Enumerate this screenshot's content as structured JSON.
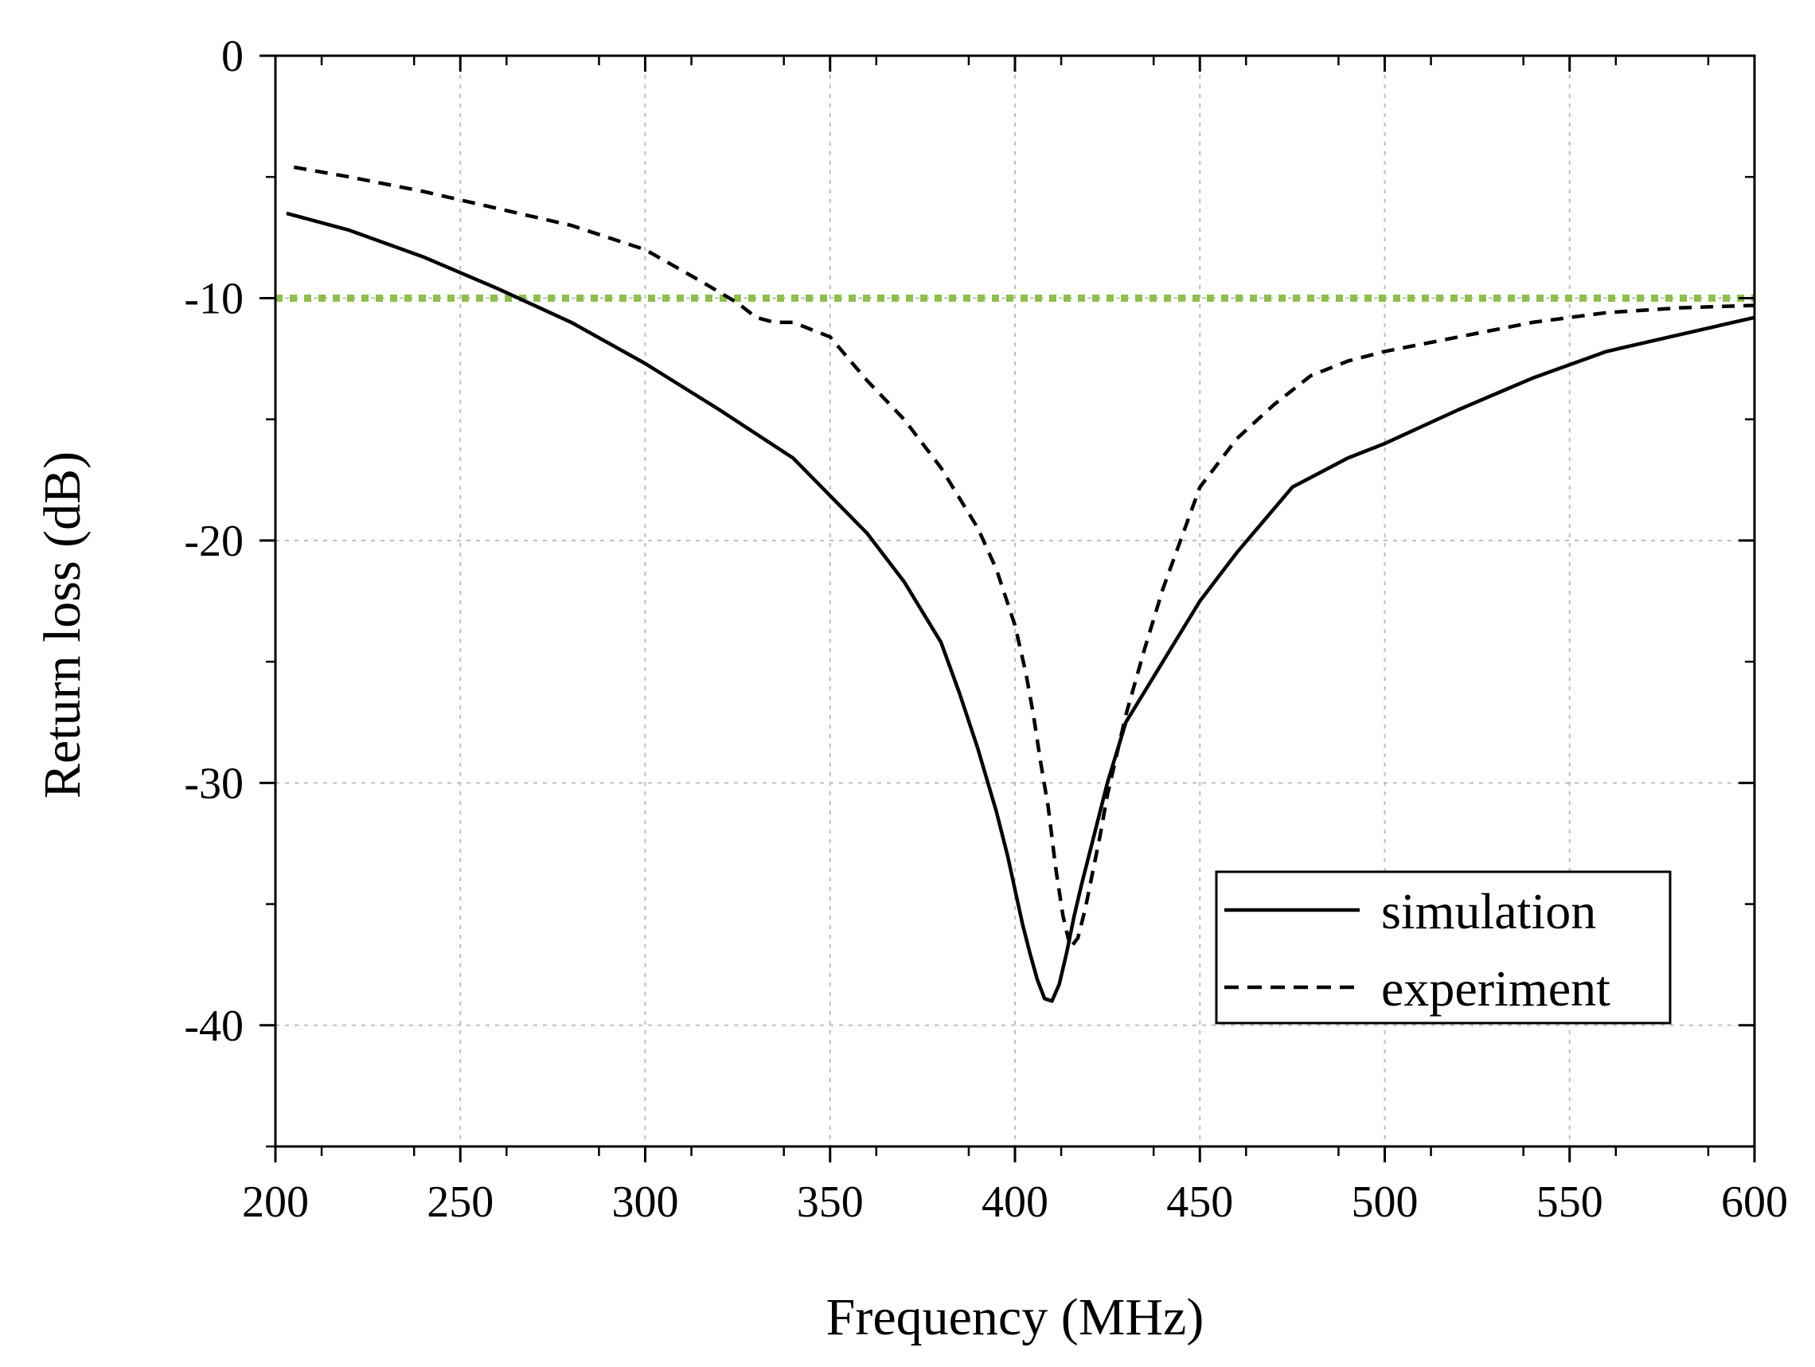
{
  "chart_data": {
    "type": "line",
    "title": "",
    "xlabel": "Frequency (MHz)",
    "ylabel": "Return loss (dB)",
    "xlim": [
      200,
      600
    ],
    "ylim": [
      -45,
      0
    ],
    "x_ticks": [
      200,
      250,
      300,
      350,
      400,
      450,
      500,
      550,
      600
    ],
    "x_tick_labels": [
      "200",
      "250",
      "300",
      "350",
      "400",
      "450",
      "500",
      "550",
      "600"
    ],
    "y_ticks": [
      0,
      -10,
      -20,
      -30,
      -40
    ],
    "y_tick_labels": [
      "0",
      "-10",
      "-20",
      "-30",
      "-40"
    ],
    "grid": true,
    "legend_position": "bottom-right",
    "reference_line": {
      "y": -10,
      "color": "#8cc04a",
      "style": "dotted"
    },
    "series": [
      {
        "name": "simulation",
        "style": "solid",
        "color": "#000000",
        "x": [
          203,
          220,
          240,
          260,
          280,
          300,
          320,
          340,
          360,
          370,
          380,
          385,
          390,
          395,
          398,
          400,
          402,
          404,
          406,
          408,
          410,
          412,
          414,
          416,
          418,
          420,
          425,
          430,
          440,
          450,
          460,
          475,
          490,
          500,
          520,
          540,
          560,
          580,
          600
        ],
        "y": [
          -6.5,
          -7.2,
          -8.3,
          -9.6,
          -11.0,
          -12.7,
          -14.6,
          -16.6,
          -19.7,
          -21.7,
          -24.2,
          -26.3,
          -28.6,
          -31.2,
          -33.0,
          -34.4,
          -35.8,
          -37.0,
          -38.1,
          -38.9,
          -39.0,
          -38.3,
          -37.0,
          -35.5,
          -34.2,
          -33.0,
          -30.0,
          -27.5,
          -25.0,
          -22.5,
          -20.5,
          -17.8,
          -16.6,
          -16.0,
          -14.6,
          -13.3,
          -12.2,
          -11.5,
          -10.8
        ]
      },
      {
        "name": "experiment",
        "style": "dashed",
        "color": "#000000",
        "x": [
          205,
          220,
          240,
          260,
          280,
          300,
          315,
          325,
          330,
          335,
          340,
          350,
          360,
          370,
          380,
          390,
          395,
          400,
          403,
          405,
          407,
          409,
          411,
          413,
          415,
          417,
          419,
          421,
          423,
          425,
          430,
          435,
          440,
          450,
          460,
          470,
          480,
          490,
          500,
          520,
          540,
          560,
          580,
          600
        ],
        "y": [
          -4.6,
          -5.0,
          -5.6,
          -6.3,
          -7.0,
          -8.0,
          -9.3,
          -10.2,
          -10.8,
          -11.0,
          -11.0,
          -11.6,
          -13.4,
          -15.0,
          -17.0,
          -19.5,
          -21.2,
          -23.5,
          -25.5,
          -27.2,
          -29.2,
          -31.0,
          -33.5,
          -35.5,
          -36.8,
          -36.4,
          -35.2,
          -33.7,
          -32.2,
          -30.5,
          -27.2,
          -24.5,
          -22.0,
          -17.8,
          -15.8,
          -14.4,
          -13.2,
          -12.6,
          -12.2,
          -11.6,
          -11.0,
          -10.6,
          -10.4,
          -10.3
        ]
      }
    ]
  }
}
